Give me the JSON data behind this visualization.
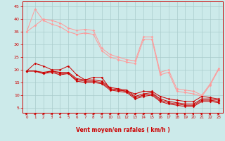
{
  "title": "",
  "xlabel": "Vent moyen/en rafales ( km/h )",
  "xlim": [
    -0.5,
    23.5
  ],
  "ylim": [
    3,
    47
  ],
  "yticks": [
    5,
    10,
    15,
    20,
    25,
    30,
    35,
    40,
    45
  ],
  "xticks": [
    0,
    1,
    2,
    3,
    4,
    5,
    6,
    7,
    8,
    9,
    10,
    11,
    12,
    13,
    14,
    15,
    16,
    17,
    18,
    19,
    20,
    21,
    22,
    23
  ],
  "bg_color": "#cceaea",
  "grid_color": "#aacccc",
  "line_color_dark": "#cc0000",
  "line_color_light": "#ff9999",
  "series_dark": [
    [
      19.5,
      22.5,
      21.5,
      20.0,
      20.0,
      21.5,
      18.0,
      16.0,
      17.0,
      17.0,
      12.5,
      12.0,
      11.5,
      10.5,
      11.5,
      11.5,
      9.5,
      8.5,
      8.0,
      7.5,
      7.5,
      9.5,
      9.0,
      8.5
    ],
    [
      19.5,
      19.5,
      19.0,
      19.5,
      19.0,
      19.0,
      16.5,
      16.0,
      16.0,
      15.5,
      13.0,
      12.5,
      12.0,
      9.5,
      10.5,
      11.0,
      8.5,
      7.5,
      7.0,
      6.5,
      6.5,
      8.5,
      8.5,
      8.0
    ],
    [
      19.5,
      19.5,
      18.5,
      19.5,
      18.5,
      18.5,
      16.0,
      15.5,
      15.5,
      15.0,
      12.5,
      12.0,
      11.5,
      9.0,
      10.0,
      10.5,
      8.0,
      7.0,
      6.5,
      6.0,
      6.0,
      8.0,
      8.0,
      7.5
    ],
    [
      19.5,
      19.5,
      18.5,
      19.0,
      18.0,
      18.5,
      15.5,
      15.0,
      15.0,
      14.5,
      12.0,
      11.5,
      11.0,
      8.5,
      9.5,
      10.0,
      7.5,
      6.5,
      6.0,
      5.5,
      5.5,
      7.5,
      7.5,
      7.0
    ]
  ],
  "series_light": [
    [
      35.0,
      37.5,
      40.0,
      39.5,
      38.5,
      36.5,
      35.5,
      36.0,
      35.5,
      28.5,
      26.0,
      25.0,
      24.0,
      23.5,
      33.0,
      33.0,
      19.0,
      20.0,
      12.5,
      12.0,
      11.5,
      10.0,
      14.5,
      20.5
    ],
    [
      35.0,
      44.0,
      39.5,
      38.0,
      37.0,
      35.0,
      34.0,
      34.5,
      34.0,
      27.5,
      25.0,
      24.0,
      23.0,
      22.5,
      32.0,
      32.0,
      18.0,
      19.0,
      11.5,
      11.0,
      10.5,
      9.5,
      14.0,
      20.0
    ]
  ],
  "arrow_angles": [
    45,
    0,
    0,
    0,
    0,
    0,
    0,
    0,
    0,
    0,
    0,
    0,
    0,
    0,
    0,
    0,
    0,
    0,
    0,
    45,
    45,
    45,
    45,
    45
  ]
}
